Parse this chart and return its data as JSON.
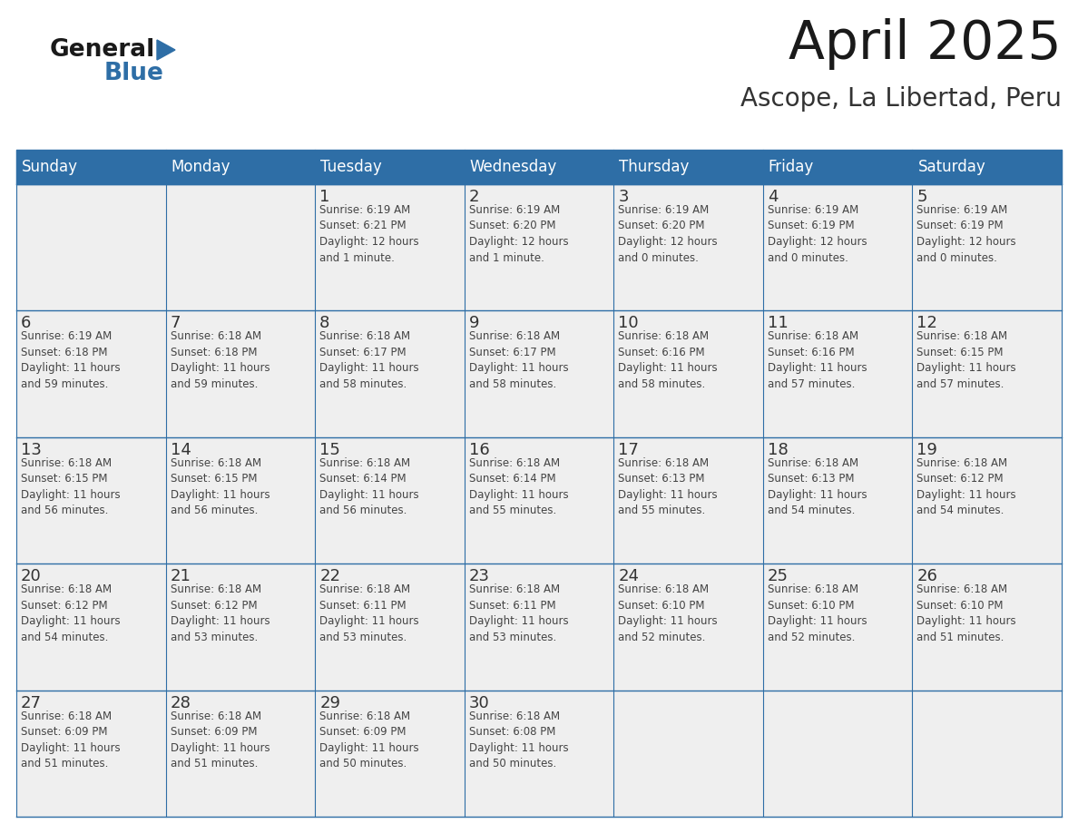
{
  "title": "April 2025",
  "subtitle": "Ascope, La Libertad, Peru",
  "header_bg_color": "#2E6EA6",
  "header_text_color": "#FFFFFF",
  "cell_bg_color": "#EFEFEF",
  "day_number_color": "#333333",
  "text_color": "#444444",
  "line_color": "#2E6EA6",
  "days_of_week": [
    "Sunday",
    "Monday",
    "Tuesday",
    "Wednesday",
    "Thursday",
    "Friday",
    "Saturday"
  ],
  "weeks": [
    [
      {
        "day": 0,
        "text": ""
      },
      {
        "day": 0,
        "text": ""
      },
      {
        "day": 1,
        "text": "Sunrise: 6:19 AM\nSunset: 6:21 PM\nDaylight: 12 hours\nand 1 minute."
      },
      {
        "day": 2,
        "text": "Sunrise: 6:19 AM\nSunset: 6:20 PM\nDaylight: 12 hours\nand 1 minute."
      },
      {
        "day": 3,
        "text": "Sunrise: 6:19 AM\nSunset: 6:20 PM\nDaylight: 12 hours\nand 0 minutes."
      },
      {
        "day": 4,
        "text": "Sunrise: 6:19 AM\nSunset: 6:19 PM\nDaylight: 12 hours\nand 0 minutes."
      },
      {
        "day": 5,
        "text": "Sunrise: 6:19 AM\nSunset: 6:19 PM\nDaylight: 12 hours\nand 0 minutes."
      }
    ],
    [
      {
        "day": 6,
        "text": "Sunrise: 6:19 AM\nSunset: 6:18 PM\nDaylight: 11 hours\nand 59 minutes."
      },
      {
        "day": 7,
        "text": "Sunrise: 6:18 AM\nSunset: 6:18 PM\nDaylight: 11 hours\nand 59 minutes."
      },
      {
        "day": 8,
        "text": "Sunrise: 6:18 AM\nSunset: 6:17 PM\nDaylight: 11 hours\nand 58 minutes."
      },
      {
        "day": 9,
        "text": "Sunrise: 6:18 AM\nSunset: 6:17 PM\nDaylight: 11 hours\nand 58 minutes."
      },
      {
        "day": 10,
        "text": "Sunrise: 6:18 AM\nSunset: 6:16 PM\nDaylight: 11 hours\nand 58 minutes."
      },
      {
        "day": 11,
        "text": "Sunrise: 6:18 AM\nSunset: 6:16 PM\nDaylight: 11 hours\nand 57 minutes."
      },
      {
        "day": 12,
        "text": "Sunrise: 6:18 AM\nSunset: 6:15 PM\nDaylight: 11 hours\nand 57 minutes."
      }
    ],
    [
      {
        "day": 13,
        "text": "Sunrise: 6:18 AM\nSunset: 6:15 PM\nDaylight: 11 hours\nand 56 minutes."
      },
      {
        "day": 14,
        "text": "Sunrise: 6:18 AM\nSunset: 6:15 PM\nDaylight: 11 hours\nand 56 minutes."
      },
      {
        "day": 15,
        "text": "Sunrise: 6:18 AM\nSunset: 6:14 PM\nDaylight: 11 hours\nand 56 minutes."
      },
      {
        "day": 16,
        "text": "Sunrise: 6:18 AM\nSunset: 6:14 PM\nDaylight: 11 hours\nand 55 minutes."
      },
      {
        "day": 17,
        "text": "Sunrise: 6:18 AM\nSunset: 6:13 PM\nDaylight: 11 hours\nand 55 minutes."
      },
      {
        "day": 18,
        "text": "Sunrise: 6:18 AM\nSunset: 6:13 PM\nDaylight: 11 hours\nand 54 minutes."
      },
      {
        "day": 19,
        "text": "Sunrise: 6:18 AM\nSunset: 6:12 PM\nDaylight: 11 hours\nand 54 minutes."
      }
    ],
    [
      {
        "day": 20,
        "text": "Sunrise: 6:18 AM\nSunset: 6:12 PM\nDaylight: 11 hours\nand 54 minutes."
      },
      {
        "day": 21,
        "text": "Sunrise: 6:18 AM\nSunset: 6:12 PM\nDaylight: 11 hours\nand 53 minutes."
      },
      {
        "day": 22,
        "text": "Sunrise: 6:18 AM\nSunset: 6:11 PM\nDaylight: 11 hours\nand 53 minutes."
      },
      {
        "day": 23,
        "text": "Sunrise: 6:18 AM\nSunset: 6:11 PM\nDaylight: 11 hours\nand 53 minutes."
      },
      {
        "day": 24,
        "text": "Sunrise: 6:18 AM\nSunset: 6:10 PM\nDaylight: 11 hours\nand 52 minutes."
      },
      {
        "day": 25,
        "text": "Sunrise: 6:18 AM\nSunset: 6:10 PM\nDaylight: 11 hours\nand 52 minutes."
      },
      {
        "day": 26,
        "text": "Sunrise: 6:18 AM\nSunset: 6:10 PM\nDaylight: 11 hours\nand 51 minutes."
      }
    ],
    [
      {
        "day": 27,
        "text": "Sunrise: 6:18 AM\nSunset: 6:09 PM\nDaylight: 11 hours\nand 51 minutes."
      },
      {
        "day": 28,
        "text": "Sunrise: 6:18 AM\nSunset: 6:09 PM\nDaylight: 11 hours\nand 51 minutes."
      },
      {
        "day": 29,
        "text": "Sunrise: 6:18 AM\nSunset: 6:09 PM\nDaylight: 11 hours\nand 50 minutes."
      },
      {
        "day": 30,
        "text": "Sunrise: 6:18 AM\nSunset: 6:08 PM\nDaylight: 11 hours\nand 50 minutes."
      },
      {
        "day": 0,
        "text": ""
      },
      {
        "day": 0,
        "text": ""
      },
      {
        "day": 0,
        "text": ""
      }
    ]
  ]
}
